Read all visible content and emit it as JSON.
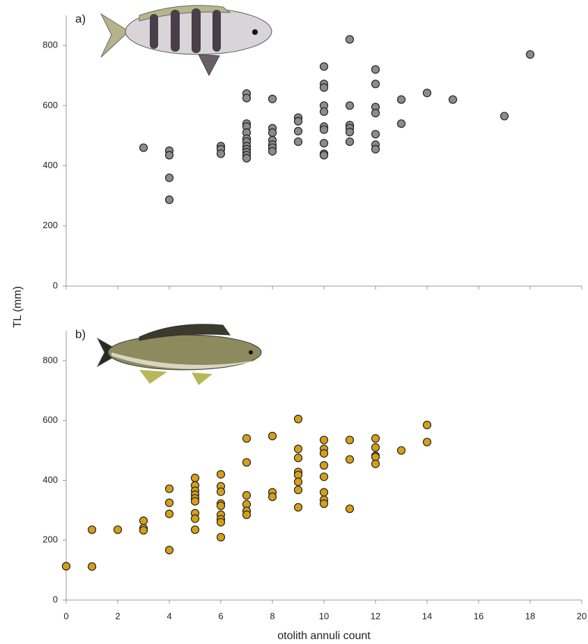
{
  "ylabel": "TL (mm)",
  "xlabel": "otolith annuli count",
  "chart_data": [
    {
      "type": "scatter",
      "label": "a)",
      "color": "#8c8c8c",
      "xlim": [
        0,
        20
      ],
      "ylim": [
        0,
        900
      ],
      "yticks": [
        0,
        200,
        400,
        600,
        800
      ],
      "xticks": [
        0,
        2,
        4,
        6,
        8,
        10,
        12,
        14,
        16,
        18,
        20
      ],
      "x": [
        3,
        4,
        4,
        4,
        4,
        6,
        6,
        6,
        7,
        7,
        7,
        7,
        7,
        7,
        7,
        7,
        7,
        7,
        7,
        7,
        8,
        8,
        8,
        8,
        8,
        8,
        8,
        9,
        9,
        9,
        9,
        10,
        10,
        10,
        10,
        10,
        10,
        10,
        10,
        10,
        10,
        11,
        11,
        11,
        11,
        11,
        11,
        12,
        12,
        12,
        12,
        12,
        12,
        12,
        13,
        13,
        14,
        15,
        17,
        18
      ],
      "y": [
        460,
        450,
        435,
        360,
        287,
        465,
        455,
        440,
        640,
        625,
        540,
        530,
        510,
        490,
        480,
        465,
        455,
        445,
        435,
        425,
        622,
        525,
        510,
        485,
        470,
        460,
        448,
        560,
        548,
        515,
        480,
        730,
        672,
        660,
        600,
        580,
        530,
        520,
        475,
        440,
        435,
        820,
        600,
        535,
        525,
        512,
        480,
        720,
        672,
        595,
        575,
        505,
        470,
        455,
        620,
        540,
        642,
        620,
        565,
        770
      ]
    },
    {
      "type": "scatter",
      "label": "b)",
      "color": "#d4a017",
      "xlim": [
        0,
        20
      ],
      "ylim": [
        0,
        900
      ],
      "yticks": [
        0,
        200,
        400,
        600,
        800
      ],
      "xticks": [
        0,
        2,
        4,
        6,
        8,
        10,
        12,
        14,
        16,
        18,
        20
      ],
      "x": [
        0,
        1,
        1,
        2,
        3,
        3,
        3,
        4,
        4,
        4,
        4,
        5,
        5,
        5,
        5,
        5,
        5,
        5,
        5,
        5,
        6,
        6,
        6,
        6,
        6,
        6,
        6,
        6,
        6,
        7,
        7,
        7,
        7,
        7,
        7,
        8,
        8,
        8,
        9,
        9,
        9,
        9,
        9,
        9,
        9,
        9,
        10,
        10,
        10,
        10,
        10,
        10,
        10,
        10,
        11,
        11,
        11,
        12,
        12,
        12,
        12,
        12,
        13,
        14,
        14
      ],
      "y": [
        113,
        235,
        112,
        235,
        265,
        240,
        233,
        372,
        325,
        288,
        167,
        408,
        383,
        365,
        352,
        340,
        330,
        290,
        272,
        235,
        420,
        380,
        362,
        322,
        315,
        285,
        270,
        260,
        210,
        540,
        460,
        350,
        320,
        298,
        285,
        548,
        360,
        345,
        605,
        505,
        475,
        428,
        418,
        395,
        368,
        310,
        535,
        505,
        490,
        450,
        412,
        360,
        335,
        322,
        535,
        470,
        305,
        540,
        510,
        482,
        478,
        455,
        500,
        585,
        528
      ]
    }
  ]
}
